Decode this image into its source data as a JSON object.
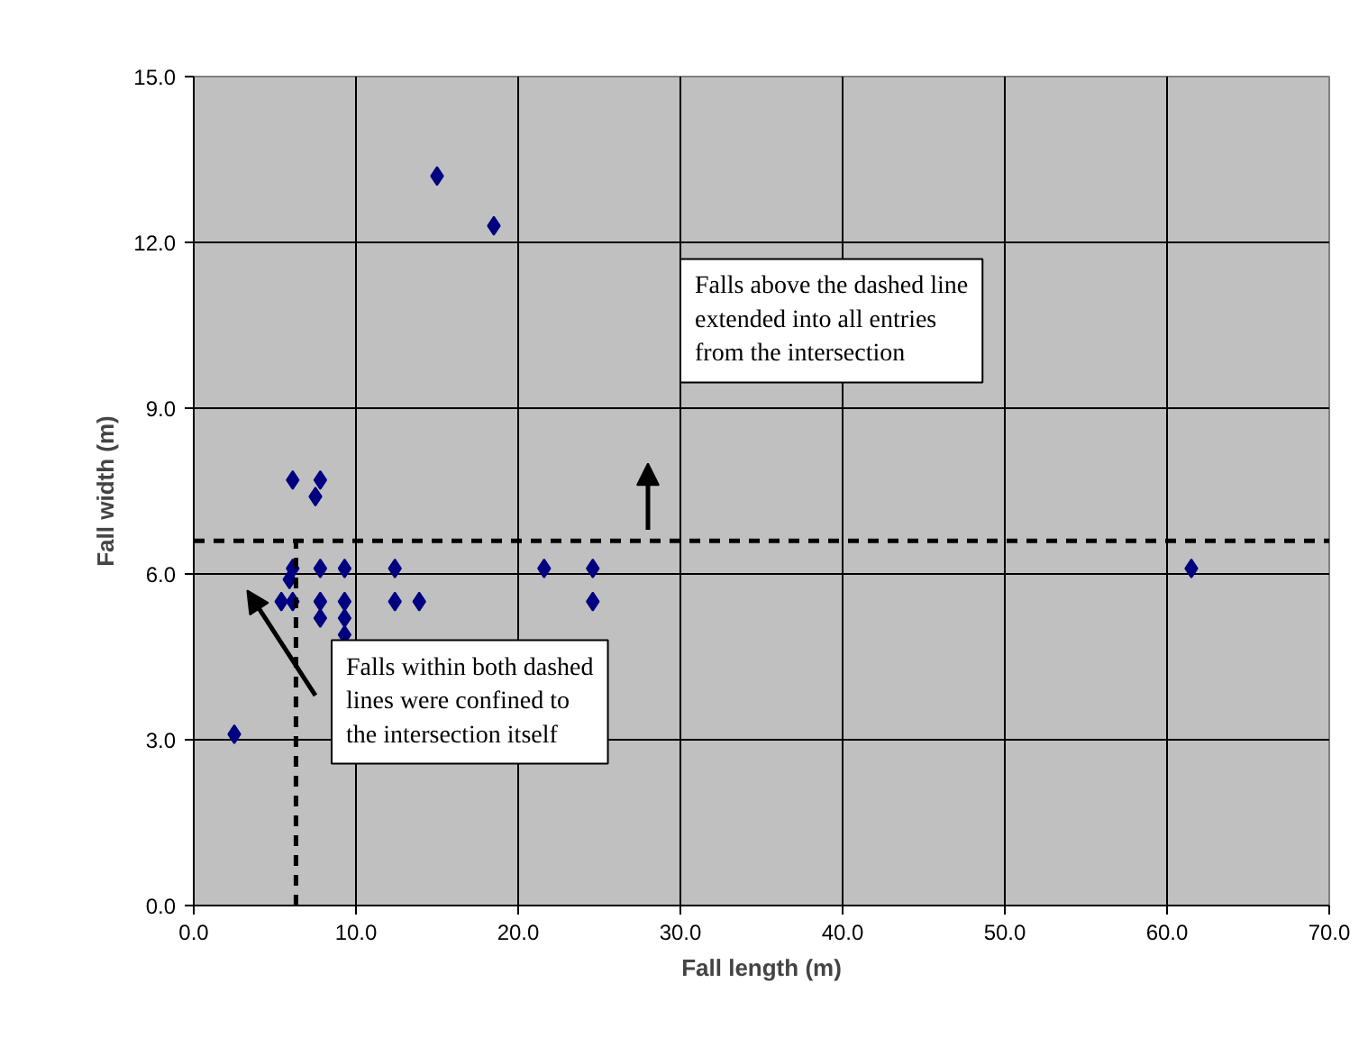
{
  "chart_data": {
    "type": "scatter",
    "xlabel": "Fall length (m)",
    "ylabel": "Fall width (m)",
    "xlim": [
      0,
      70
    ],
    "ylim": [
      0,
      15
    ],
    "xticks": [
      {
        "value": 0,
        "label": "0.0"
      },
      {
        "value": 10,
        "label": "10.0"
      },
      {
        "value": 20,
        "label": "20.0"
      },
      {
        "value": 30,
        "label": "30.0"
      },
      {
        "value": 40,
        "label": "40.0"
      },
      {
        "value": 50,
        "label": "50.0"
      },
      {
        "value": 60,
        "label": "60.0"
      },
      {
        "value": 70,
        "label": "70.0"
      }
    ],
    "yticks": [
      {
        "value": 0,
        "label": "0.0"
      },
      {
        "value": 3,
        "label": "3.0"
      },
      {
        "value": 6,
        "label": "6.0"
      },
      {
        "value": 9,
        "label": "9.0"
      },
      {
        "value": 12,
        "label": "12.0"
      },
      {
        "value": 15,
        "label": "15.0"
      }
    ],
    "grid": true,
    "series": [
      {
        "color": "#000080",
        "marker": "diamond",
        "x": [
          6.1,
          7.8,
          7.5,
          6.1,
          7.8,
          9.3,
          12.4,
          5.9,
          5.4,
          6.1,
          7.8,
          9.3,
          12.4,
          13.9,
          7.8,
          9.3,
          9.3,
          2.5,
          15.0,
          18.5,
          21.6,
          24.6,
          24.6,
          61.5
        ],
        "values": [
          7.7,
          7.7,
          7.4,
          6.1,
          6.1,
          6.1,
          6.1,
          5.9,
          5.5,
          5.5,
          5.5,
          5.5,
          5.5,
          5.5,
          5.2,
          5.2,
          4.9,
          3.1,
          13.2,
          12.3,
          6.1,
          6.1,
          5.5,
          6.1
        ]
      },
      {
        "type": "line",
        "line_style": "dashed",
        "color": "#000000",
        "x": [
          0,
          70
        ],
        "values": [
          6.6,
          6.6
        ]
      },
      {
        "type": "line",
        "line_style": "dashed",
        "color": "#000000",
        "x": [
          6.3,
          6.3
        ],
        "values": [
          0,
          6.6
        ]
      }
    ],
    "annotations": [
      "Falls above the dashed line\nextended into all entries\nfrom the intersection",
      "Falls within both dashed\nlines were confined to\nthe intersection itself"
    ]
  }
}
